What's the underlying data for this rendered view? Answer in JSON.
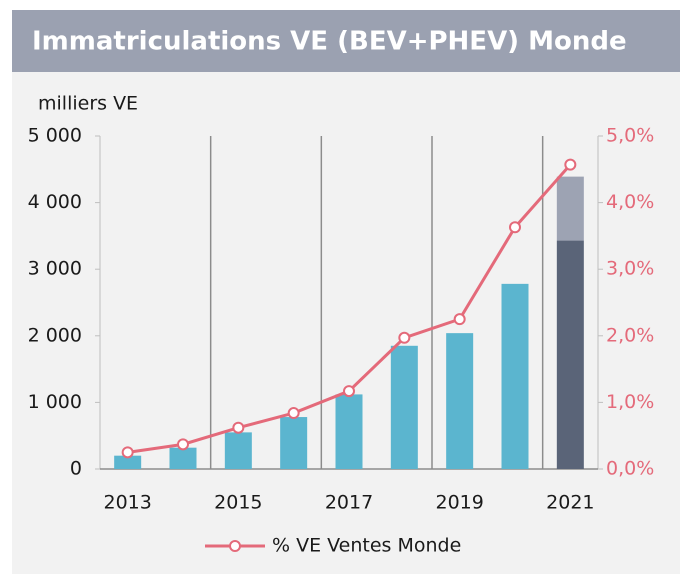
{
  "chart_data": {
    "type": "bar",
    "title": "Immatriculations VE (BEV+PHEV) Monde",
    "y_axis_label": "milliers VE",
    "categories": [
      "2013",
      null,
      "2015",
      null,
      "2017",
      null,
      "2019",
      null,
      "2021"
    ],
    "series": [
      {
        "color": "#5bb5cf",
        "last_color": "#5a6478",
        "values": [
          200,
          320,
          550,
          780,
          1120,
          1850,
          2040,
          2780,
          3430
        ]
      },
      {
        "color": "#9da3b3",
        "values": [
          null,
          null,
          null,
          null,
          null,
          null,
          null,
          null,
          960
        ]
      },
      {
        "name": "% VE Ventes Monde",
        "type": "line",
        "axis": "y2",
        "color": "#e46a7a",
        "values": [
          0.25,
          0.37,
          0.62,
          0.84,
          1.17,
          1.97,
          2.25,
          3.63,
          4.57
        ]
      }
    ],
    "ylim": [
      0,
      5000
    ],
    "yticks": [
      0,
      {
        "value": 1000,
        "label": "1 000"
      },
      {
        "value": 2000,
        "label": "2 000"
      },
      {
        "value": 3000,
        "label": "3 000"
      },
      {
        "value": 4000,
        "label": "4 000"
      },
      {
        "value": 5000,
        "label": "5 000"
      }
    ],
    "y2lim": [
      0,
      5
    ],
    "y2ticks": [
      {
        "value": 0,
        "label": "0,0%"
      },
      {
        "value": 1,
        "label": "1,0%"
      },
      {
        "value": 2,
        "label": "2,0%"
      },
      {
        "value": 3,
        "label": "3,0%"
      },
      {
        "value": 4,
        "label": "4,0%"
      },
      {
        "value": 5,
        "label": "5,0%"
      }
    ]
  }
}
